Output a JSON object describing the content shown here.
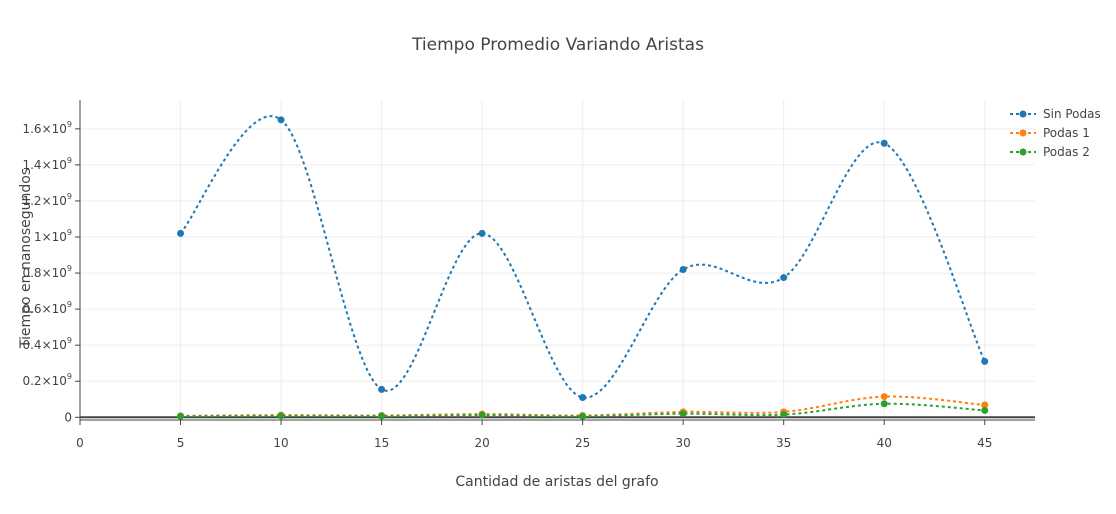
{
  "chart_data": {
    "type": "line",
    "title": "Tiempo Promedio Variando Aristas",
    "xlabel": "Cantidad de aristas del grafo",
    "ylabel": "Tiempo en nanosegundos",
    "xlim": [
      0,
      47.5
    ],
    "ylim": [
      -0.015,
      1.76
    ],
    "y_unit_exponent": 9,
    "x_ticks": [
      0,
      5,
      10,
      15,
      20,
      25,
      30,
      35,
      40,
      45
    ],
    "y_ticks": [
      {
        "value": 0,
        "label": "0"
      },
      {
        "value": 0.2,
        "label": "0.2×10",
        "exp": "9"
      },
      {
        "value": 0.4,
        "label": "0.4×10",
        "exp": "9"
      },
      {
        "value": 0.6,
        "label": "0.6×10",
        "exp": "9"
      },
      {
        "value": 0.8,
        "label": "0.8×10",
        "exp": "9"
      },
      {
        "value": 1.0,
        "label": "1×10",
        "exp": "9"
      },
      {
        "value": 1.2,
        "label": "1.2×10",
        "exp": "9"
      },
      {
        "value": 1.4,
        "label": "1.4×10",
        "exp": "9"
      },
      {
        "value": 1.6,
        "label": "1.6×10",
        "exp": "9"
      }
    ],
    "x": [
      5,
      10,
      15,
      20,
      25,
      30,
      35,
      40,
      45
    ],
    "series": [
      {
        "name": "Sin Podas",
        "color": "#1f77b4",
        "values": [
          1.02,
          1.65,
          0.155,
          1.02,
          0.11,
          0.82,
          0.775,
          1.52,
          0.31
        ]
      },
      {
        "name": "Podas 1",
        "color": "#ff7f0e",
        "values": [
          0.008,
          0.012,
          0.01,
          0.018,
          0.01,
          0.03,
          0.03,
          0.115,
          0.068
        ]
      },
      {
        "name": "Podas 2",
        "color": "#2ca02c",
        "values": [
          0.006,
          0.008,
          0.007,
          0.012,
          0.006,
          0.02,
          0.015,
          0.075,
          0.038
        ]
      }
    ],
    "grid": true,
    "legend": "top-right"
  }
}
